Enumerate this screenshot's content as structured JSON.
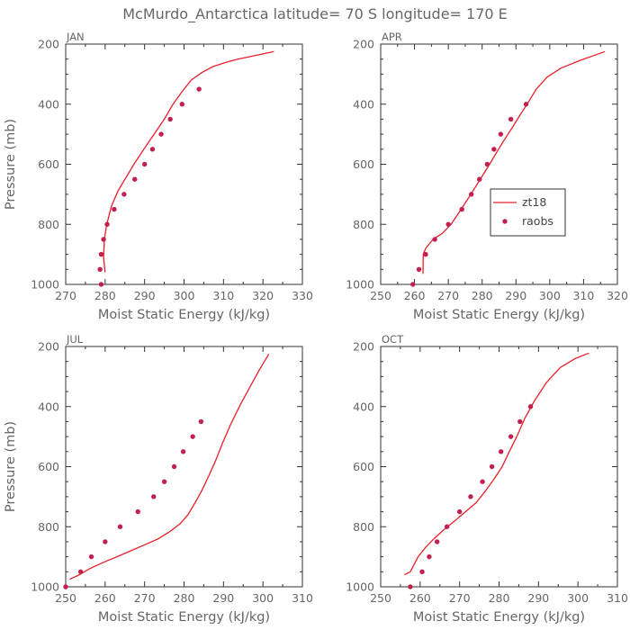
{
  "title": "McMurdo_Antarctica  latitude= 70 S longitude= 170 E",
  "colors": {
    "model": "#e8202a",
    "obs": "#c2204f",
    "axis": "#333333",
    "text": "#666666"
  },
  "legend": {
    "model_label": "zt18",
    "obs_label": "raobs",
    "placement": "right-middle of APR panel"
  },
  "chart_data": [
    {
      "type": "line",
      "title": "JAN",
      "xlabel": "Moist Static Energy (kJ/kg)",
      "ylabel": "Pressure (mb)",
      "xlim": [
        270,
        330
      ],
      "ylim": [
        1000,
        200
      ],
      "xticks": [
        270,
        280,
        290,
        300,
        310,
        320,
        330
      ],
      "yticks": [
        200,
        400,
        600,
        800,
        1000
      ],
      "series": [
        {
          "name": "zt18",
          "kind": "line",
          "x": [
            280.0,
            279.6,
            279.8,
            280.4,
            281.6,
            283.2,
            285.0,
            287.3,
            289.8,
            292.4,
            295.0,
            297.2,
            299.4,
            301.8,
            304.5,
            307.3,
            310.3,
            313.6,
            318.0,
            322.8
          ],
          "y": [
            960,
            910,
            850,
            800,
            740,
            690,
            650,
            600,
            550,
            500,
            450,
            400,
            360,
            320,
            295,
            275,
            262,
            250,
            238,
            225
          ]
        },
        {
          "name": "raobs",
          "kind": "points",
          "x": [
            279.0,
            278.7,
            279.0,
            279.6,
            280.5,
            282.3,
            284.8,
            287.5,
            290.0,
            292.0,
            294.2,
            296.5,
            299.5,
            303.8
          ],
          "y": [
            1000,
            950,
            900,
            850,
            800,
            750,
            700,
            650,
            600,
            550,
            500,
            450,
            400,
            350
          ]
        }
      ]
    },
    {
      "type": "line",
      "title": "APR",
      "xlabel": "Moist Static Energy (kJ/kg)",
      "ylabel": "",
      "xlim": [
        250,
        320
      ],
      "ylim": [
        1000,
        200
      ],
      "xticks": [
        250,
        260,
        270,
        280,
        290,
        300,
        310,
        320
      ],
      "yticks": [
        200,
        400,
        600,
        800,
        1000
      ],
      "series": [
        {
          "name": "zt18",
          "kind": "line",
          "x": [
            262.5,
            262.6,
            263.3,
            265.5,
            268.2,
            270.8,
            273.2,
            275.5,
            277.8,
            280.0,
            282.2,
            284.3,
            286.5,
            288.8,
            291.0,
            293.3,
            296.0,
            299.2,
            303.3,
            308.8,
            313.8,
            316.3
          ],
          "y": [
            965,
            900,
            880,
            850,
            830,
            800,
            760,
            720,
            680,
            640,
            600,
            560,
            520,
            480,
            440,
            400,
            350,
            310,
            280,
            255,
            235,
            225
          ]
        },
        {
          "name": "raobs",
          "kind": "points",
          "x": [
            259.5,
            261.3,
            263.3,
            266.0,
            270.0,
            274.0,
            276.8,
            279.2,
            281.5,
            283.5,
            285.5,
            288.5,
            293.0
          ],
          "y": [
            1000,
            950,
            900,
            850,
            800,
            750,
            700,
            650,
            600,
            550,
            500,
            450,
            400
          ]
        }
      ]
    },
    {
      "type": "line",
      "title": "JUL",
      "xlabel": "Moist Static Energy (kJ/kg)",
      "ylabel": "Pressure (mb)",
      "xlim": [
        250,
        310
      ],
      "ylim": [
        1000,
        200
      ],
      "xticks": [
        250,
        260,
        270,
        280,
        290,
        300,
        310
      ],
      "yticks": [
        200,
        400,
        600,
        800,
        1000
      ],
      "series": [
        {
          "name": "zt18",
          "kind": "line",
          "x": [
            251.0,
            253.5,
            256.0,
            259.3,
            263.0,
            266.5,
            270.0,
            273.5,
            276.5,
            279.0,
            281.0,
            282.8,
            284.5,
            286.3,
            288.0,
            289.8,
            291.8,
            294.0,
            296.5,
            299.0,
            301.5
          ],
          "y": [
            975,
            960,
            940,
            920,
            900,
            880,
            860,
            840,
            815,
            790,
            760,
            720,
            680,
            630,
            580,
            520,
            460,
            400,
            340,
            280,
            225
          ]
        },
        {
          "name": "raobs",
          "kind": "points",
          "x": [
            250.0,
            253.8,
            256.5,
            260.0,
            263.8,
            268.3,
            272.3,
            275.0,
            277.5,
            279.8,
            282.2,
            284.3
          ],
          "y": [
            1000,
            950,
            900,
            850,
            800,
            750,
            700,
            650,
            600,
            550,
            500,
            450
          ]
        }
      ]
    },
    {
      "type": "line",
      "title": "OCT",
      "xlabel": "Moist Static Energy (kJ/kg)",
      "ylabel": "",
      "xlim": [
        250,
        310
      ],
      "ylim": [
        1000,
        200
      ],
      "xticks": [
        250,
        260,
        270,
        280,
        290,
        300,
        310
      ],
      "yticks": [
        200,
        400,
        600,
        800,
        1000
      ],
      "series": [
        {
          "name": "zt18",
          "kind": "line",
          "x": [
            256.0,
            257.5,
            258.3,
            259.5,
            261.3,
            263.5,
            266.0,
            268.8,
            271.5,
            274.2,
            276.6,
            278.8,
            280.8,
            282.6,
            284.5,
            286.5,
            289.0,
            292.0,
            295.5,
            299.3,
            302.8
          ],
          "y": [
            960,
            950,
            930,
            900,
            870,
            840,
            810,
            780,
            750,
            720,
            680,
            640,
            600,
            550,
            500,
            440,
            380,
            320,
            270,
            240,
            222
          ]
        },
        {
          "name": "raobs",
          "kind": "points",
          "x": [
            257.5,
            260.5,
            262.3,
            264.3,
            266.8,
            270.0,
            272.8,
            275.8,
            278.2,
            280.5,
            283.0,
            285.3,
            288.0
          ],
          "y": [
            1000,
            950,
            900,
            850,
            800,
            750,
            700,
            650,
            600,
            550,
            500,
            450,
            400
          ]
        }
      ]
    }
  ]
}
